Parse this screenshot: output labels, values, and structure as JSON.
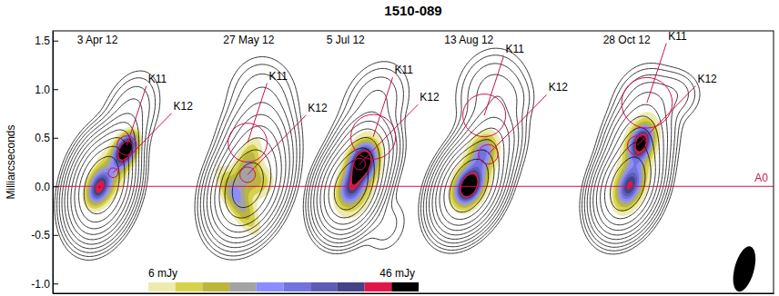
{
  "chart_data": {
    "type": "contour",
    "title": "1510-089",
    "y_label": "Milliarcseconds",
    "xlim": [
      0,
      7.4
    ],
    "ylim": [
      -1.1,
      1.6
    ],
    "yticks": [
      1.5,
      {
        "value": 1,
        "label": "1.0"
      },
      0.5,
      {
        "value": 0,
        "label": "0.0"
      },
      -0.5,
      {
        "value": -1,
        "label": "-1.0"
      }
    ],
    "tick_labels": "y",
    "contour_levels": [
      1,
      2,
      4,
      8,
      16,
      32,
      64,
      128,
      256,
      512
    ],
    "reference": {
      "name": "A0",
      "y": 0
    },
    "colorbar": {
      "lim": [
        6,
        46
      ],
      "ticks": [
        {
          "value": 6,
          "label": "6 mJy"
        },
        {
          "value": 46,
          "label": "46 mJy"
        }
      ],
      "colors": [
        "#efeab0",
        "#d6d24a",
        "#bcb63e",
        "#a3a3a3",
        "#8c8cff",
        "#7373dd",
        "#5d5db8",
        "#434385",
        "#e0184a",
        "#000000"
      ]
    },
    "beam": {
      "x": 7.1,
      "y": -0.85,
      "major": 0.48,
      "minor": 0.2,
      "pa": 15
    },
    "panels": [
      {
        "date": "3 Apr 12",
        "x": 0.5,
        "stokes_i": [
          {
            "x": 0,
            "y": 0,
            "peak": 1400,
            "major": 0.48,
            "minor": 0.28,
            "pa": 15
          },
          {
            "x": 0.15,
            "y": 0.35,
            "peak": 120,
            "major": 0.4,
            "minor": 0.22,
            "pa": 20
          },
          {
            "x": 0.3,
            "y": 0.75,
            "peak": 10,
            "major": 0.5,
            "minor": 0.3,
            "pa": 20
          }
        ],
        "stokes_p": [
          {
            "x": 0.25,
            "y": 0.38,
            "peak": 50,
            "major": 0.28,
            "minor": 0.16,
            "pa": 25
          },
          {
            "x": -0.03,
            "y": -0.02,
            "peak": 34,
            "major": 0.3,
            "minor": 0.18,
            "pa": 20
          },
          {
            "x": 0.1,
            "y": 0.15,
            "peak": 14,
            "major": 0.5,
            "minor": 0.3,
            "pa": 20
          }
        ],
        "knots": [
          {
            "name": "K11",
            "x": 0.26,
            "y": 0.42,
            "radius": 0.1
          },
          {
            "name": "K12",
            "x": 0.12,
            "y": 0.14,
            "radius": 0.05
          }
        ]
      },
      {
        "date": "27 May 12",
        "x": 2.0,
        "stokes_i": [
          {
            "x": 0,
            "y": 0,
            "peak": 900,
            "major": 0.5,
            "minor": 0.32,
            "pa": 20
          },
          {
            "x": 0.1,
            "y": 0.4,
            "peak": 90,
            "major": 0.5,
            "minor": 0.35,
            "pa": 10
          },
          {
            "x": 0.15,
            "y": 0.9,
            "peak": 8,
            "major": 0.5,
            "minor": 0.4,
            "pa": 0
          }
        ],
        "stokes_p": [
          {
            "x": -0.1,
            "y": -0.15,
            "peak": 20,
            "major": 0.6,
            "minor": 0.2,
            "pa": -30
          },
          {
            "x": 0,
            "y": 0.25,
            "peak": 16,
            "major": 0.45,
            "minor": 0.2,
            "pa": 20
          },
          {
            "x": 0.1,
            "y": 0.05,
            "peak": 14,
            "major": 0.3,
            "minor": 0.3,
            "pa": 0
          }
        ],
        "knots": [
          {
            "name": "K11",
            "x": 0,
            "y": 0.45,
            "radius": 0.2
          },
          {
            "name": "K12",
            "x": 0,
            "y": 0.12,
            "radius": 0.08
          }
        ]
      },
      {
        "date": "5 Jul 12",
        "x": 3.06,
        "stokes_i": [
          {
            "x": 0,
            "y": 0,
            "peak": 1200,
            "major": 0.45,
            "minor": 0.28,
            "pa": 20
          },
          {
            "x": 0.15,
            "y": 0.35,
            "peak": 150,
            "major": 0.4,
            "minor": 0.3,
            "pa": 15
          },
          {
            "x": 0.25,
            "y": 0.85,
            "peak": 10,
            "major": 0.5,
            "minor": 0.35,
            "pa": 25
          },
          {
            "x": 0.35,
            "y": -0.4,
            "peak": 3,
            "major": 0.4,
            "minor": 0.3,
            "pa": 20
          }
        ],
        "stokes_p": [
          {
            "x": 0.12,
            "y": 0.25,
            "peak": 48,
            "major": 0.3,
            "minor": 0.2,
            "pa": 20
          },
          {
            "x": 0,
            "y": -0.02,
            "peak": 26,
            "major": 0.3,
            "minor": 0.2,
            "pa": 20
          },
          {
            "x": 0.1,
            "y": 0.1,
            "peak": 12,
            "major": 0.8,
            "minor": 0.35,
            "pa": 15
          }
        ],
        "knots": [
          {
            "name": "K11",
            "x": 0.23,
            "y": 0.51,
            "radius": 0.23
          },
          {
            "name": "K12",
            "x": 0.09,
            "y": 0.23,
            "radius": 0.06
          }
        ]
      },
      {
        "date": "13 Aug 12",
        "x": 4.27,
        "stokes_i": [
          {
            "x": 0,
            "y": 0,
            "peak": 1500,
            "major": 0.45,
            "minor": 0.28,
            "pa": 25
          },
          {
            "x": 0.2,
            "y": 0.4,
            "peak": 100,
            "major": 0.45,
            "minor": 0.3,
            "pa": 20
          },
          {
            "x": 0.25,
            "y": 0.95,
            "peak": 12,
            "major": 0.5,
            "minor": 0.4,
            "pa": 10
          },
          {
            "x": 0.4,
            "y": 0.9,
            "peak": 4,
            "major": 0.3,
            "minor": 0.3,
            "pa": 0
          }
        ],
        "stokes_p": [
          {
            "x": 0,
            "y": 0,
            "peak": 50,
            "major": 0.3,
            "minor": 0.2,
            "pa": 25
          },
          {
            "x": 0.15,
            "y": 0.35,
            "peak": 20,
            "major": 0.3,
            "minor": 0.2,
            "pa": 20
          },
          {
            "x": 0.07,
            "y": 0.15,
            "peak": 10,
            "major": 0.7,
            "minor": 0.35,
            "pa": 20
          }
        ],
        "knots": [
          {
            "name": "K11",
            "x": 0.16,
            "y": 0.73,
            "radius": 0.22
          },
          {
            "name": "K12",
            "x": 0.2,
            "y": 0.33,
            "radius": 0.1
          }
        ]
      },
      {
        "date": "28 Oct 12",
        "x": 5.9,
        "stokes_i": [
          {
            "x": 0,
            "y": 0,
            "peak": 1300,
            "major": 0.45,
            "minor": 0.28,
            "pa": 20
          },
          {
            "x": 0.1,
            "y": 0.4,
            "peak": 200,
            "major": 0.45,
            "minor": 0.3,
            "pa": 15
          },
          {
            "x": 0.2,
            "y": 0.8,
            "peak": 20,
            "major": 0.45,
            "minor": 0.35,
            "pa": 10
          },
          {
            "x": 0.5,
            "y": 0.95,
            "peak": 6,
            "major": 0.3,
            "minor": 0.3,
            "pa": 0
          }
        ],
        "stokes_p": [
          {
            "x": 0.02,
            "y": 0,
            "peak": 32,
            "major": 0.35,
            "minor": 0.2,
            "pa": 20
          },
          {
            "x": 0.14,
            "y": 0.45,
            "peak": 40,
            "major": 0.3,
            "minor": 0.18,
            "pa": 20
          },
          {
            "x": 0.1,
            "y": 0.3,
            "peak": 10,
            "major": 0.9,
            "minor": 0.35,
            "pa": 15
          }
        ],
        "knots": [
          {
            "name": "K11",
            "x": 0.2,
            "y": 0.86,
            "radius": 0.26
          },
          {
            "name": "K12",
            "x": 0.1,
            "y": 0.42,
            "radius": 0.1
          }
        ]
      }
    ]
  }
}
